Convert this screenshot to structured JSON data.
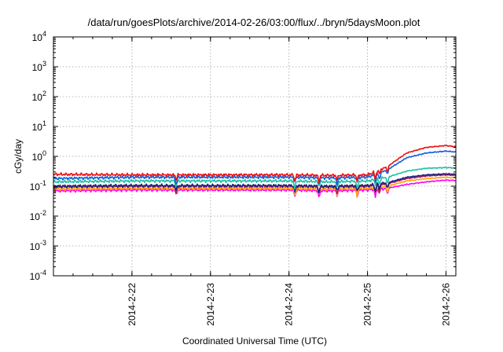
{
  "chart_data": {
    "type": "line",
    "title": "/data/run/goesPlots/archive/2014-02-26/03:00/flux/../bryn/5daysMoon.plot",
    "xlabel": "Coordinated Universal Time (UTC)",
    "ylabel": "cGy/day",
    "yscale": "log",
    "ylim": [
      0.0001,
      10000
    ],
    "xlim": [
      "2014-02-21 00:00",
      "2014-02-26 03:00"
    ],
    "x_ticks": [
      "2014-2-22",
      "2014-2-23",
      "2014-2-24",
      "2014-2-25",
      "2014-2-26"
    ],
    "y_ticks": [
      {
        "base": "10",
        "exp": "4"
      },
      {
        "base": "10",
        "exp": "3"
      },
      {
        "base": "10",
        "exp": "2"
      },
      {
        "base": "10",
        "exp": "1"
      },
      {
        "base": "10",
        "exp": "0"
      },
      {
        "base": "10",
        "exp": "-1"
      },
      {
        "base": "10",
        "exp": "-2"
      },
      {
        "base": "10",
        "exp": "-3"
      },
      {
        "base": "10",
        "exp": "-4"
      }
    ],
    "grid": true,
    "series": [
      {
        "color": "#ff00ff",
        "points": [
          [
            "2014-02-21 00:00",
            0.07
          ],
          [
            "2014-02-22 00:00",
            0.075
          ],
          [
            "2014-02-23 00:00",
            0.075
          ],
          [
            "2014-02-24 00:00",
            0.075
          ],
          [
            "2014-02-24 12:00",
            0.07
          ],
          [
            "2014-02-25 00:00",
            0.075
          ],
          [
            "2014-02-25 06:00",
            0.085
          ],
          [
            "2014-02-25 12:00",
            0.115
          ],
          [
            "2014-02-25 18:00",
            0.14
          ],
          [
            "2014-02-26 00:00",
            0.16
          ],
          [
            "2014-02-26 03:00",
            0.155
          ]
        ]
      },
      {
        "color": "#ffa500",
        "points": [
          [
            "2014-02-21 00:00",
            0.08
          ],
          [
            "2014-02-22 00:00",
            0.085
          ],
          [
            "2014-02-23 00:00",
            0.085
          ],
          [
            "2014-02-24 00:00",
            0.085
          ],
          [
            "2014-02-24 12:00",
            0.08
          ],
          [
            "2014-02-25 00:00",
            0.085
          ],
          [
            "2014-02-25 06:00",
            0.1
          ],
          [
            "2014-02-25 12:00",
            0.15
          ],
          [
            "2014-02-25 18:00",
            0.18
          ],
          [
            "2014-02-26 00:00",
            0.2
          ],
          [
            "2014-02-26 03:00",
            0.19
          ]
        ]
      },
      {
        "color": "#a0206a",
        "points": [
          [
            "2014-02-21 00:00",
            0.095
          ],
          [
            "2014-02-22 00:00",
            0.1
          ],
          [
            "2014-02-23 00:00",
            0.1
          ],
          [
            "2014-02-24 00:00",
            0.1
          ],
          [
            "2014-02-24 12:00",
            0.095
          ],
          [
            "2014-02-25 00:00",
            0.1
          ],
          [
            "2014-02-25 06:00",
            0.12
          ],
          [
            "2014-02-25 12:00",
            0.18
          ],
          [
            "2014-02-25 18:00",
            0.22
          ],
          [
            "2014-02-26 00:00",
            0.24
          ],
          [
            "2014-02-26 03:00",
            0.23
          ]
        ]
      },
      {
        "color": "#202080",
        "points": [
          [
            "2014-02-21 00:00",
            0.1
          ],
          [
            "2014-02-22 00:00",
            0.105
          ],
          [
            "2014-02-23 00:00",
            0.105
          ],
          [
            "2014-02-24 00:00",
            0.105
          ],
          [
            "2014-02-24 12:00",
            0.1
          ],
          [
            "2014-02-25 00:00",
            0.105
          ],
          [
            "2014-02-25 06:00",
            0.13
          ],
          [
            "2014-02-25 12:00",
            0.2
          ],
          [
            "2014-02-25 18:00",
            0.24
          ],
          [
            "2014-02-26 00:00",
            0.26
          ],
          [
            "2014-02-26 03:00",
            0.25
          ]
        ]
      },
      {
        "color": "#20c0a0",
        "points": [
          [
            "2014-02-21 00:00",
            0.14
          ],
          [
            "2014-02-22 00:00",
            0.15
          ],
          [
            "2014-02-23 00:00",
            0.15
          ],
          [
            "2014-02-24 00:00",
            0.15
          ],
          [
            "2014-02-24 12:00",
            0.14
          ],
          [
            "2014-02-25 00:00",
            0.15
          ],
          [
            "2014-02-25 06:00",
            0.2
          ],
          [
            "2014-02-25 12:00",
            0.32
          ],
          [
            "2014-02-25 18:00",
            0.4
          ],
          [
            "2014-02-26 00:00",
            0.42
          ],
          [
            "2014-02-26 03:00",
            0.41
          ]
        ]
      },
      {
        "color": "#1060e0",
        "points": [
          [
            "2014-02-21 00:00",
            0.18
          ],
          [
            "2014-02-22 00:00",
            0.2
          ],
          [
            "2014-02-23 00:00",
            0.2
          ],
          [
            "2014-02-24 00:00",
            0.2
          ],
          [
            "2014-02-24 12:00",
            0.19
          ],
          [
            "2014-02-25 00:00",
            0.2
          ],
          [
            "2014-02-25 06:00",
            0.35
          ],
          [
            "2014-02-25 12:00",
            0.9
          ],
          [
            "2014-02-25 18:00",
            1.3
          ],
          [
            "2014-02-26 00:00",
            1.5
          ],
          [
            "2014-02-26 03:00",
            1.4
          ]
        ]
      },
      {
        "color": "#ee1010",
        "points": [
          [
            "2014-02-21 00:00",
            0.25
          ],
          [
            "2014-02-22 00:00",
            0.24
          ],
          [
            "2014-02-23 00:00",
            0.24
          ],
          [
            "2014-02-24 00:00",
            0.24
          ],
          [
            "2014-02-24 12:00",
            0.23
          ],
          [
            "2014-02-25 00:00",
            0.24
          ],
          [
            "2014-02-25 06:00",
            0.45
          ],
          [
            "2014-02-25 12:00",
            1.3
          ],
          [
            "2014-02-25 18:00",
            2.0
          ],
          [
            "2014-02-26 00:00",
            2.3
          ],
          [
            "2014-02-26 03:00",
            2.1
          ]
        ]
      }
    ]
  }
}
